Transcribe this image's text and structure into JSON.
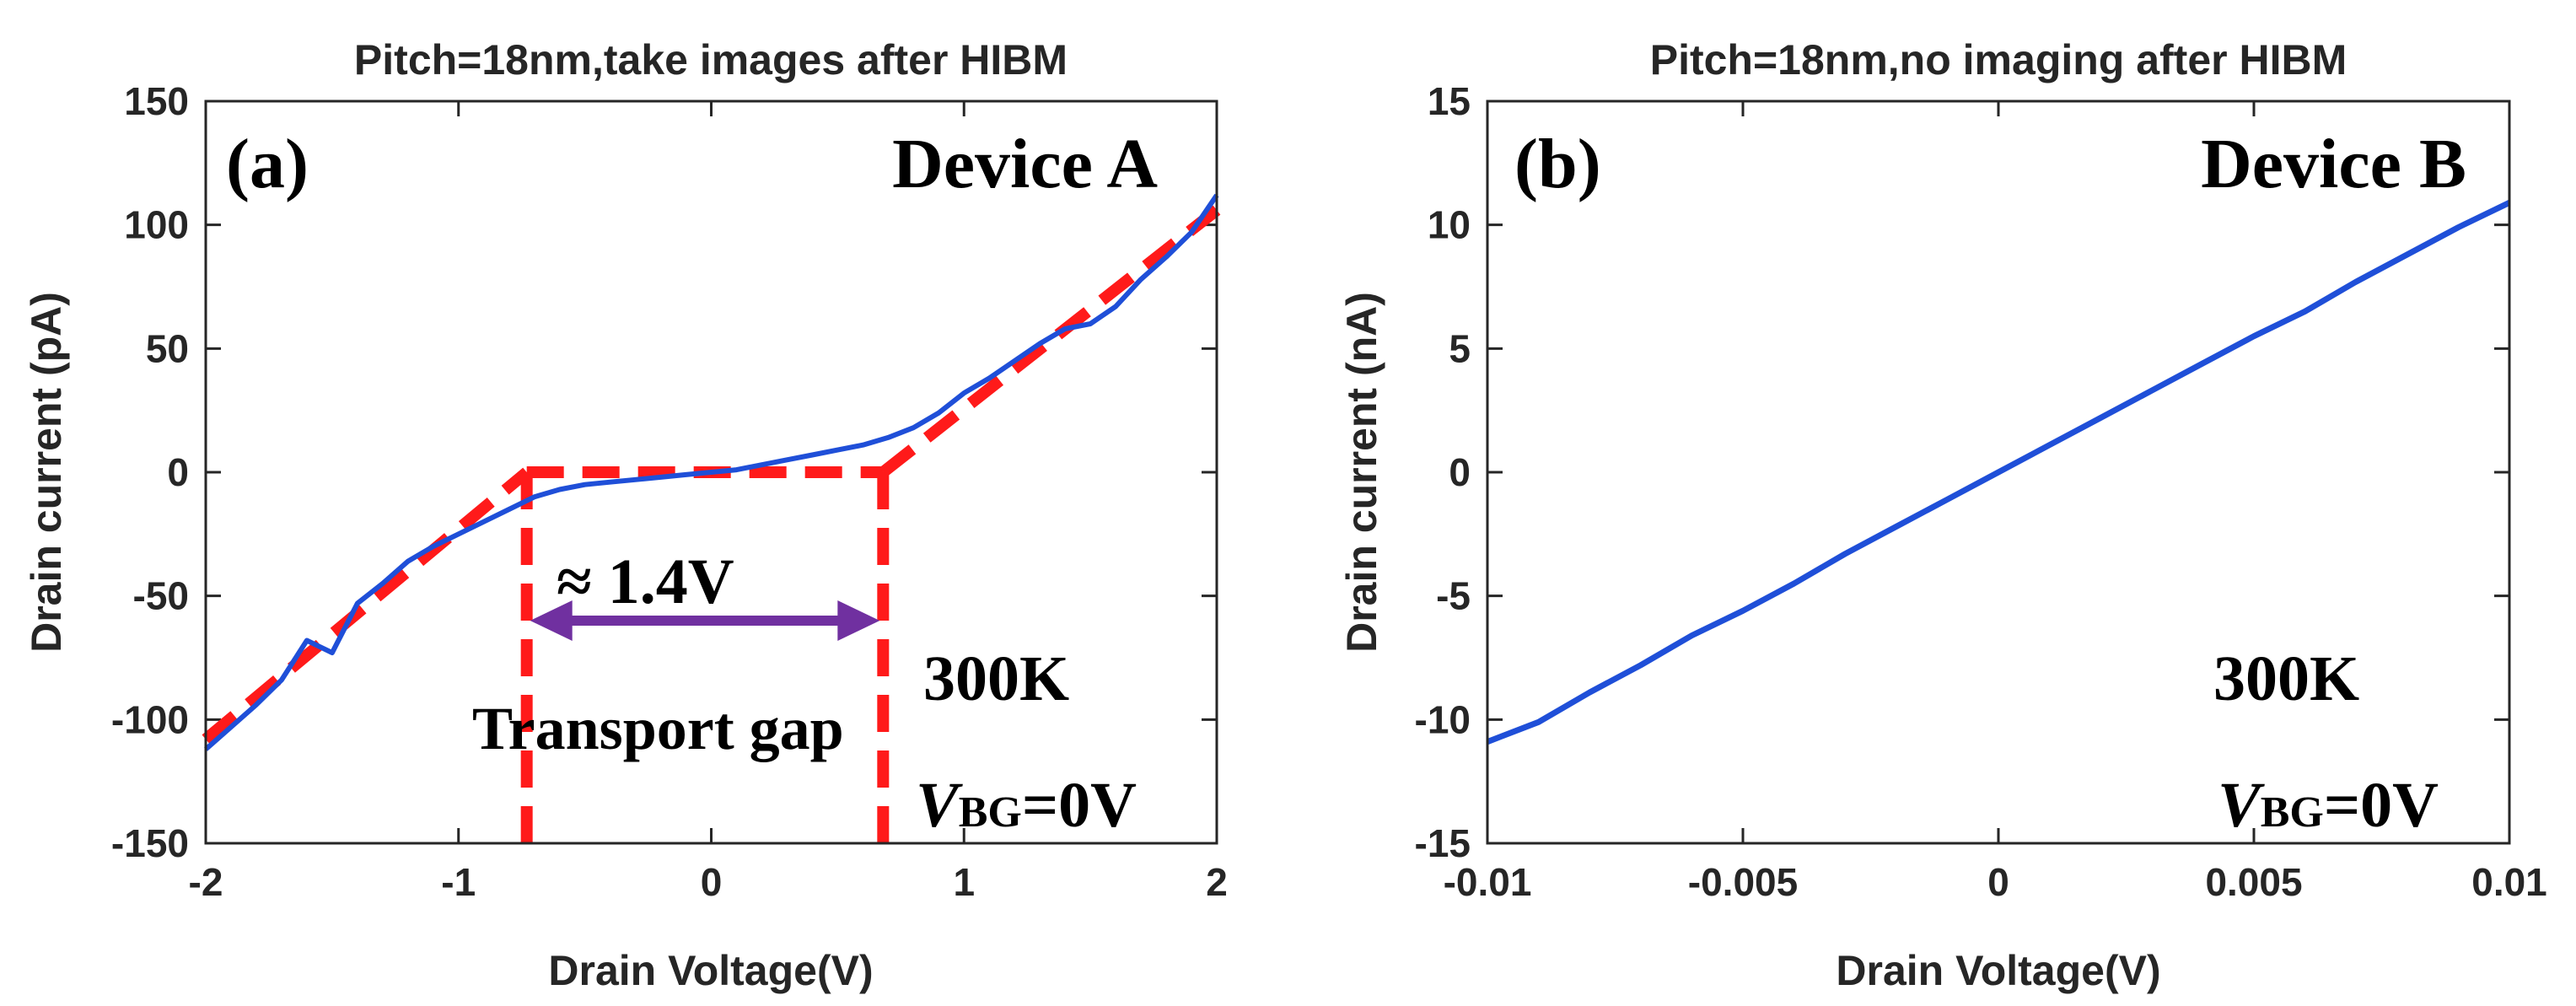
{
  "chart_data": [
    {
      "type": "line",
      "title": "Pitch=18nm,take images after HIBM",
      "xlabel": "Drain Voltage(V)",
      "ylabel": "Drain current (pA)",
      "xlim": [
        -2,
        2
      ],
      "ylim": [
        -150,
        150
      ],
      "xticks": [
        "-2",
        "-1",
        "0",
        "1",
        "2"
      ],
      "xtick_values": [
        -2,
        -1,
        0,
        1,
        2
      ],
      "yticks": [
        "150",
        "100",
        "50",
        "0",
        "-50",
        "-100",
        "-150"
      ],
      "ytick_values": [
        150,
        100,
        50,
        0,
        -50,
        -100,
        -150
      ],
      "grid": false,
      "series": [
        {
          "color": "#1f4fd8",
          "x": [
            -2.0,
            -1.9,
            -1.8,
            -1.7,
            -1.6,
            -1.5,
            -1.4,
            -1.3,
            -1.2,
            -1.1,
            -1.0,
            -0.9,
            -0.8,
            -0.7,
            -0.6,
            -0.5,
            -0.4,
            -0.3,
            -0.2,
            -0.1,
            0.0,
            0.1,
            0.2,
            0.3,
            0.4,
            0.5,
            0.6,
            0.7,
            0.8,
            0.9,
            1.0,
            1.1,
            1.2,
            1.3,
            1.4,
            1.5,
            1.6,
            1.7,
            1.8,
            1.9,
            2.0
          ],
          "y": [
            -112,
            -103,
            -94,
            -84,
            -68,
            -73,
            -53,
            -45,
            -36,
            -30,
            -25,
            -20,
            -15,
            -10,
            -7,
            -5,
            -4,
            -3,
            -2,
            -1,
            0,
            1,
            3,
            5,
            7,
            9,
            11,
            14,
            18,
            24,
            32,
            38,
            45,
            52,
            58,
            60,
            67,
            78,
            87,
            97,
            112
          ]
        }
      ],
      "fit_lines": {
        "color": "#ff1a1a",
        "segments": [
          {
            "x": [
              -2.0,
              -0.73
            ],
            "y": [
              -108,
              0
            ]
          },
          {
            "x": [
              -0.73,
              0.68
            ],
            "y": [
              0,
              0
            ]
          },
          {
            "x": [
              0.68,
              2.0
            ],
            "y": [
              0,
              106
            ]
          },
          {
            "x": [
              -0.73,
              -0.73
            ],
            "y": [
              0,
              -150
            ]
          },
          {
            "x": [
              0.68,
              0.68
            ],
            "y": [
              0,
              -150
            ]
          }
        ]
      },
      "gap_arrow": {
        "color": "#7030a0",
        "x": [
          -0.73,
          0.68
        ],
        "y": -60
      },
      "annotations": {
        "panel": "(a)",
        "device": "Device A",
        "temperature": "300K",
        "gap_value": "≈ 1.4V",
        "gap_label": "Transport gap",
        "vbg_symbol": "V",
        "vbg_sub": "BG",
        "vbg_value": "=0V"
      }
    },
    {
      "type": "line",
      "title": "Pitch=18nm,no imaging after HIBM",
      "xlabel": "Drain Voltage(V)",
      "ylabel": "Drain current (nA)",
      "xlim": [
        -0.01,
        0.01
      ],
      "ylim": [
        -15,
        15
      ],
      "xticks": [
        "-0.01",
        "-0.005",
        "0",
        "0.005",
        "0.01"
      ],
      "xtick_values": [
        -0.01,
        -0.005,
        0,
        0.005,
        0.01
      ],
      "yticks": [
        "15",
        "10",
        "5",
        "0",
        "-5",
        "-10",
        "-15"
      ],
      "ytick_values": [
        15,
        10,
        5,
        0,
        -5,
        -10,
        -15
      ],
      "grid": false,
      "series": [
        {
          "color": "#1f4fd8",
          "x": [
            -0.01,
            -0.009,
            -0.008,
            -0.007,
            -0.006,
            -0.005,
            -0.004,
            -0.003,
            -0.002,
            -0.001,
            0.0,
            0.001,
            0.002,
            0.003,
            0.004,
            0.005,
            0.006,
            0.007,
            0.008,
            0.009,
            0.01
          ],
          "y": [
            -10.9,
            -10.1,
            -8.9,
            -7.8,
            -6.6,
            -5.6,
            -4.5,
            -3.3,
            -2.2,
            -1.1,
            0.0,
            1.1,
            2.2,
            3.3,
            4.4,
            5.5,
            6.5,
            7.7,
            8.8,
            9.9,
            10.9
          ]
        }
      ],
      "annotations": {
        "panel": "(b)",
        "device": "Device B",
        "temperature": "300K",
        "vbg_symbol": "V",
        "vbg_sub": "BG",
        "vbg_value": "=0V"
      }
    }
  ]
}
